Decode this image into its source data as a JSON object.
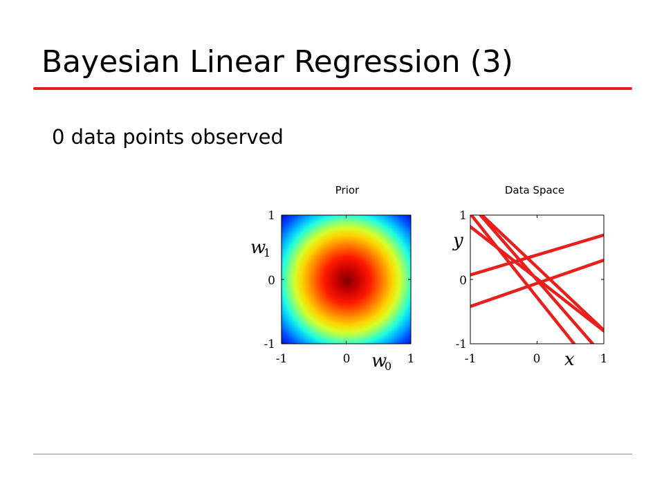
{
  "slide": {
    "title": "Bayesian Linear Regression (3)",
    "subtitle": "0 data points observed",
    "accent_color": "#e02020"
  },
  "chart_data": [
    {
      "type": "heatmap",
      "title": "Prior",
      "colormap": "jet",
      "distribution": "isotropic gaussian centered at (0, 0)",
      "center": [
        0,
        0
      ],
      "xlabel": "w",
      "xlabel_subscript": "0",
      "ylabel": "w",
      "ylabel_subscript": "1",
      "xlim": [
        -1,
        1
      ],
      "ylim": [
        -1,
        1
      ],
      "xticks": [
        "-1",
        "0",
        "1"
      ],
      "yticks": [
        "1",
        "0",
        "-1"
      ],
      "grid": false
    },
    {
      "type": "line",
      "title": "Data Space",
      "xlabel": "x",
      "ylabel": "y",
      "xlim": [
        -1,
        1
      ],
      "ylim": [
        -1,
        1
      ],
      "xticks": [
        "-1",
        "0",
        "1"
      ],
      "yticks": [
        "1",
        "0",
        "-1"
      ],
      "grid": false,
      "line_color": "#e8201c",
      "series": [
        {
          "intercept": -0.28,
          "slope": -1.3
        },
        {
          "intercept": 0.38,
          "slope": 0.31
        },
        {
          "intercept": 0.19,
          "slope": -0.98
        },
        {
          "intercept": 0.01,
          "slope": -0.81
        },
        {
          "intercept": -0.01,
          "slope": -1.19
        },
        {
          "intercept": -0.06,
          "slope": 0.36
        }
      ]
    }
  ]
}
